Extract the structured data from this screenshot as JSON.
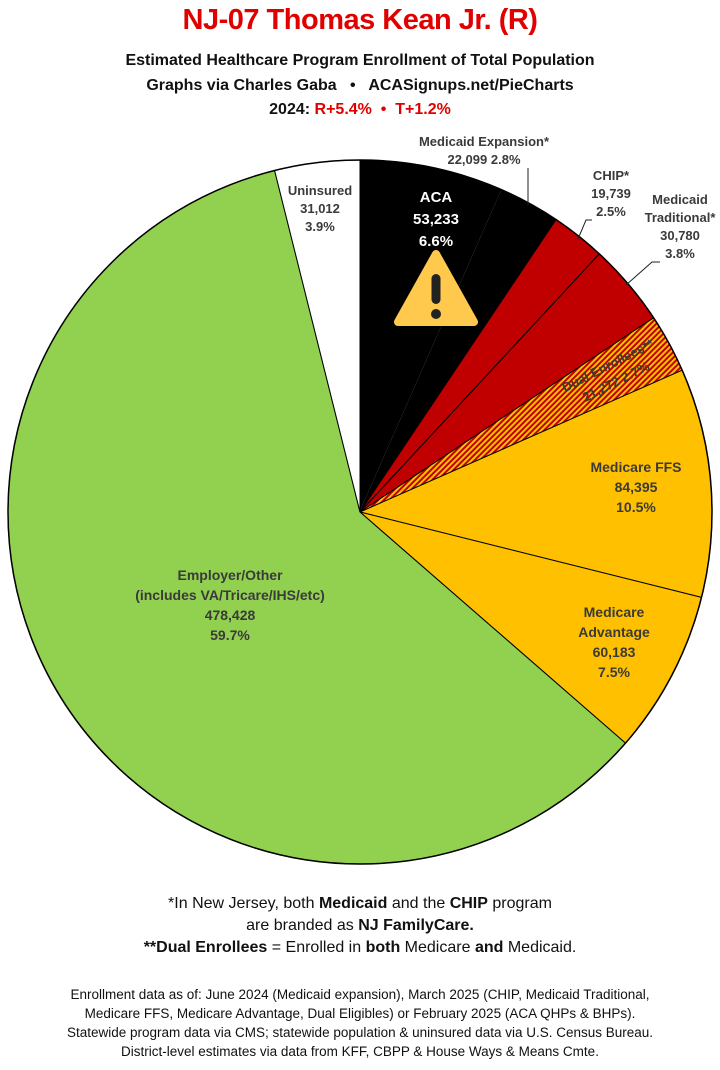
{
  "header": {
    "title": "NJ-07 Thomas Kean Jr. (R)",
    "subtitle": "Estimated Healthcare Program Enrollment of Total Population",
    "credit": "Graphs via Charles Gaba   •   ACASignups.net/PieCharts",
    "year_label": "2024:",
    "margins": "R+5.4%  •  T+1.2%"
  },
  "chart_data": {
    "type": "pie",
    "start": "12 o'clock, clockwise",
    "slices": [
      {
        "name": "ACA",
        "value": 53233,
        "percent": "6.6%",
        "pct": 6.6,
        "color": "#000000",
        "value_label": "53,233"
      },
      {
        "name": "Medicaid Expansion*",
        "value": 22099,
        "percent": "2.8%",
        "pct": 2.8,
        "color": "#000000",
        "value_label": "22,099"
      },
      {
        "name": "CHIP*",
        "value": 19739,
        "percent": "2.5%",
        "pct": 2.5,
        "color": "#c00000",
        "value_label": "19,739"
      },
      {
        "name": "Medicaid Traditional*",
        "value": 30780,
        "percent": "3.8%",
        "pct": 3.8,
        "color": "#c00000",
        "value_label": "30,780"
      },
      {
        "name": "Dual Enrollees**",
        "value": 21272,
        "percent": "2.7%",
        "pct": 2.7,
        "color": "hatched #c00000/#ffc000",
        "value_label": "21,272"
      },
      {
        "name": "Medicare FFS",
        "value": 84395,
        "percent": "10.5%",
        "pct": 10.5,
        "color": "#ffc000",
        "value_label": "84,395"
      },
      {
        "name": "Medicare Advantage",
        "value": 60183,
        "percent": "7.5%",
        "pct": 7.5,
        "color": "#ffc000",
        "value_label": "60,183"
      },
      {
        "name": "Employer/Other",
        "sub": "(includes VA/Tricare/IHS/etc)",
        "value": 478428,
        "percent": "59.7%",
        "pct": 59.7,
        "color": "#92d050",
        "value_label": "478,428"
      },
      {
        "name": "Uninsured",
        "value": 31012,
        "percent": "3.9%",
        "pct": 3.9,
        "color": "#ffffff",
        "value_label": "31,012"
      }
    ],
    "annotation_icon": "warning-triangle-icon"
  },
  "notes": {
    "line1_a": "*In New Jersey, both ",
    "line1_b": "Medicaid",
    "line1_c": " and the ",
    "line1_d": "CHIP",
    "line1_e": " program",
    "line2_a": "are branded as ",
    "line2_b": "NJ FamilyCare.",
    "line3_a": "**Dual Enrollees",
    "line3_b": " = Enrolled in ",
    "line3_c": "both",
    "line3_d": " Medicare ",
    "line3_e": "and",
    "line3_f": " Medicaid."
  },
  "sources": [
    "Enrollment data as of: June 2024 (Medicaid expansion), March 2025 (CHIP, Medicaid Traditional,",
    "Medicare FFS, Medicare Advantage, Dual Eligibles) or February 2025 (ACA QHPs & BHPs).",
    "Statewide program data via CMS; statewide population & uninsured data via U.S. Census Bureau.",
    "District-level estimates via data from KFF, CBPP & House Ways & Means Cmte."
  ]
}
